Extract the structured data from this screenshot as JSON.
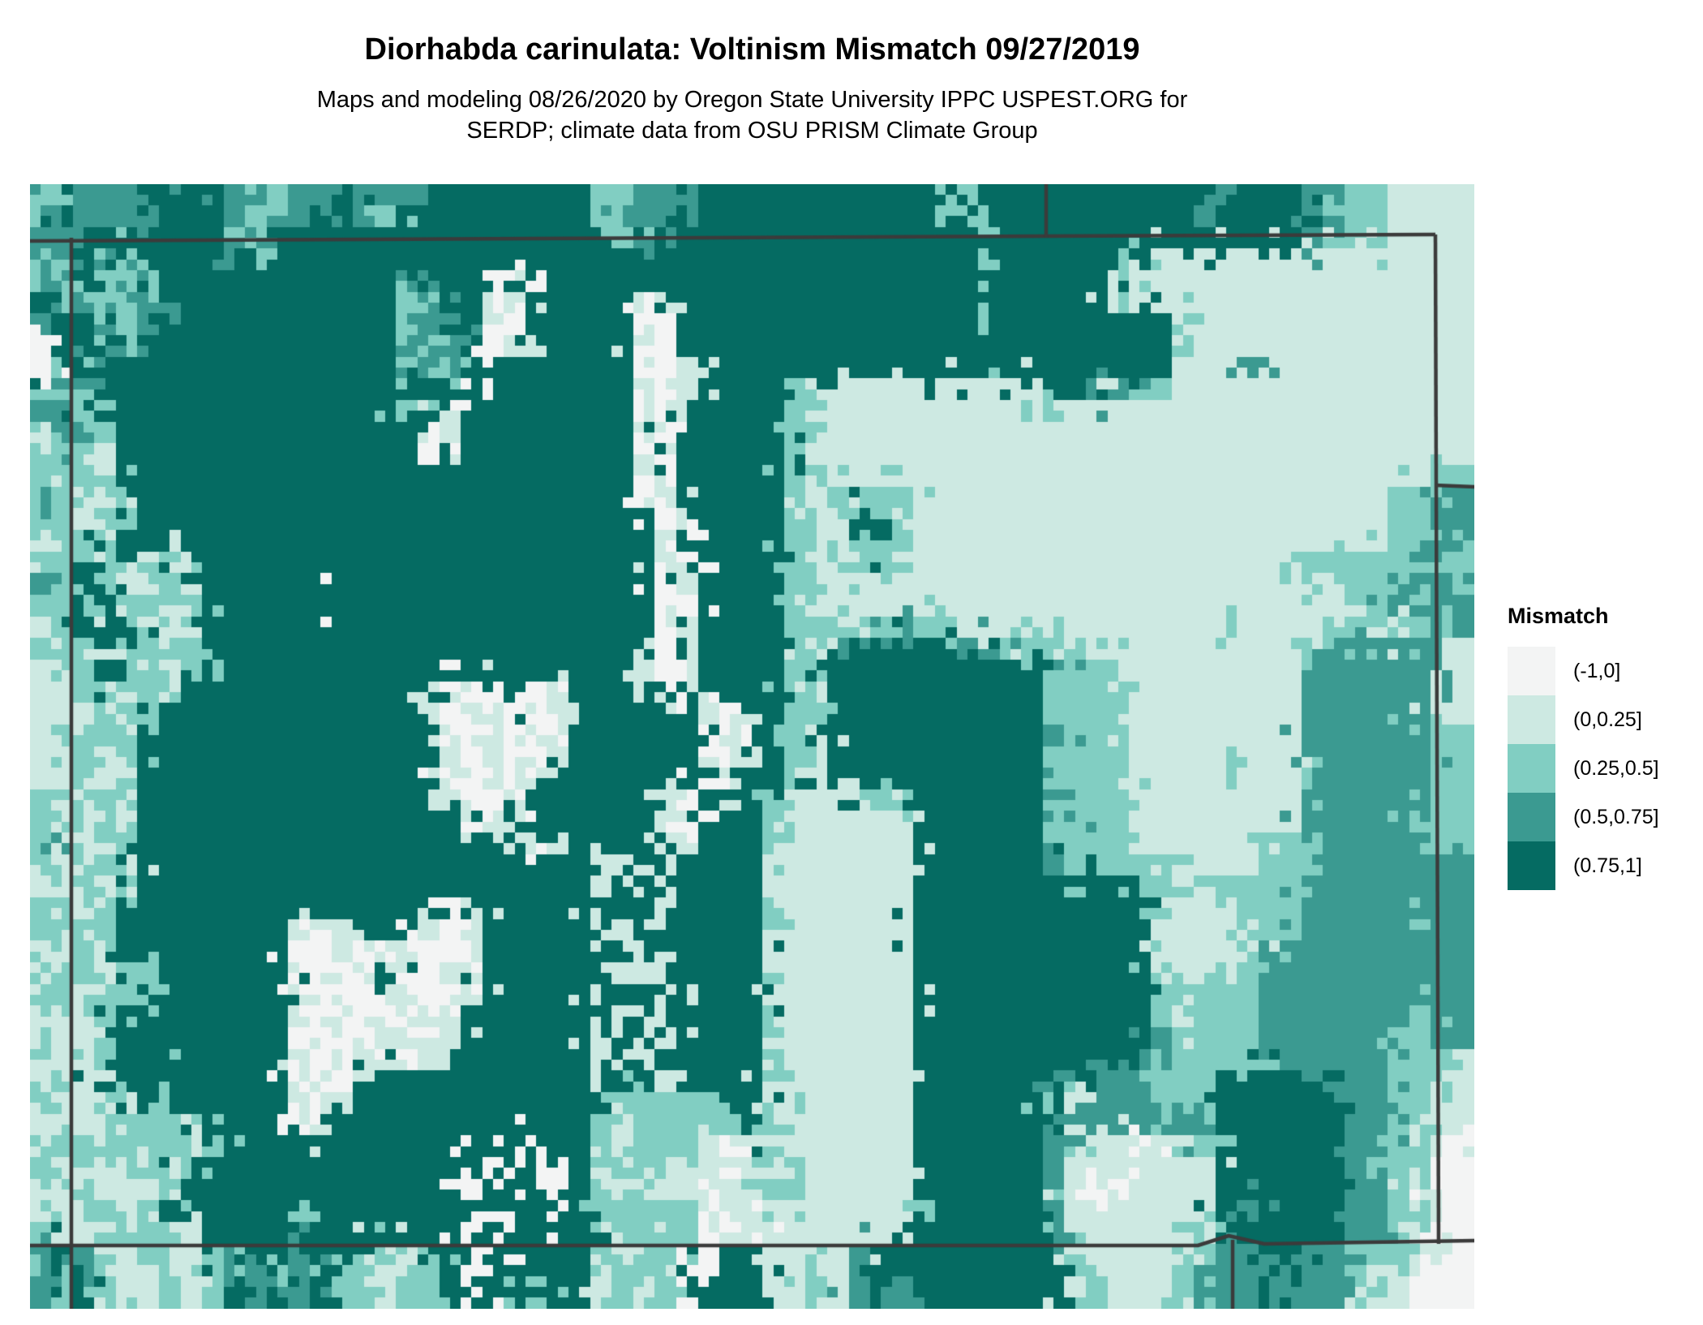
{
  "header": {
    "title": "Diorhabda carinulata: Voltinism Mismatch 09/27/2019",
    "subtitle_line1": "Maps and modeling 08/26/2020 by Oregon State University IPPC USPEST.ORG for",
    "subtitle_line2": "SERDP; climate data from OSU PRISM Climate Group"
  },
  "legend": {
    "title": "Mismatch",
    "items": [
      {
        "label": "(-1,0]",
        "class": "a",
        "color": "#f3f4f4"
      },
      {
        "label": "(0,0.25]",
        "class": "b",
        "color": "#cde9e2"
      },
      {
        "label": "(0.25,0.5]",
        "class": "c",
        "color": "#81cec2"
      },
      {
        "label": "(0.5,0.75]",
        "class": "d",
        "color": "#3b9a91"
      },
      {
        "label": "(0.75,1]",
        "class": "e",
        "color": "#056b62"
      }
    ]
  },
  "map": {
    "region": "Colorado and surrounding state borders",
    "palette": {
      "a": "#f3f4f4",
      "b": "#cde9e2",
      "c": "#81cec2",
      "d": "#3b9a91",
      "e": "#056b62"
    },
    "class_ranges": {
      "a": "(-1,0]",
      "b": "(0,0.25]",
      "c": "(0.25,0.5]",
      "d": "(0.5,0.75]",
      "e": "(0.75,1]"
    },
    "grid_cols": 67,
    "grid_rows": 52,
    "grid_rle_rows": [
      "1d1c4d3e2d1c2d1e3d8e2c3d11e2c3e8e1d3e2d2c4b",
      "1c1e3d1e3e1d1c2d2e1d1c1e8e1c1d2d1e11e1c1e3e7e1d4e1d1c2c4b",
      "2d1e2e1d3e1c1d15e2c1d2e13e1c2e10e2e1d1d2c2b2b",
      "1c1d1e1d1c4e1d1c2e8e2e3e9e9e1c1e4e2c2b9b2b2b",
      "1d1c1e1c1d1c2e5e4e1d1c2e2a5e1e6e12e3e1c2b12b2b",
      "1e1c1d2c1d2e9e1c1d2e1a1b5e1a1b5e7e2e3e3e3b12b2b",
      "1d2e1d1c1d2e9e1c2d1e1b1a5e2a5e9e1c2e6e1c3b8b2b",
      "1a1e1e1d1c3e9e1d1c1d1e1a1b5e1b1a5e9e3e6e1c3b8b2b",
      "1a1c6e9e1c1d1c3e5e2a1b4e9e1c2e6e2b3d7b2b",
      "1c1e1d5e9e3e1e1a1e5e1b1a1b4e2c10b2e2d2c10b2b2b",
      "2d1c5e9e1c1e1b1a2e4e1e1a1b5e1c1b10b1c2b13b4b",
      "1b1c1d1c4e9e1e1a1b1e2e5e1b1a5e2c10b16b4b",
      "1c1d1c1b4e9e1e1a2e7e1a1b5e1c1b10b16b4b",
      "2c1b1c4e9e4e7e1b1a5e2c4b6b16b2b2c",
      "1d1c1c1b1c3e9e4e7e1a1b5e1c1b4c6b16b2c2d",
      "1c1b1b1c1b3e9e4e7e1e1a1b4e1c1b1c1e2c6b16b2c2d",
      "1b1c1c1b4e9e4e7e1e1b1a4e2c1b1c1e1c6b12b4b2c2d",
      "2c3e1c1b1c9e4e7e1e1b1a4e1c1b4c6b12b2c2c1c1d2c",
      "1d1c1e1c1b1b1c1b9e4e7e1e1a1b4e2c10b8b4b1c1b2c2d1d1c",
      "2c1c1e1c1c1b1c5e1a3e4e7e1e1b1a4e1c1b10b8b4b2b2c1d1c2d",
      "1b1c3e1b1c1b9e4e7e1e1a1b4e2c2c2d2c2b2b8b1c3b1b1c2c1b1c2d",
      "2c1c1b1c3c9e4e7e1b1a1b4e1c1b2d4e2d2c2c6b4b1c1d2d2d1d1b",
      "2b1c2e1c1b1c9e4e7e1b1a1b4e2c10e1d3c4b4b4d2d2b",
      "2b1c1b1c2c1e9e1e1b2a1b1e1a1b1e2e1e1b1a4e1c1b10e4c4b4b4d2d2b",
      "2b1b1c1b1c2e9e1e1b1a1b2a1b1a1b2e3e1b1a1b1e2c10e4c8b4d1d1c2b",
      "2b3c3e9e2e1b2a1b1a1b3e3e1a1b1a1e1c1b10e1d3c8b4d2d2c",
      "2b1c1b1c3e9e2e1b1a1b2a1b3e3e1b1a1b1e2c10e4c4b1c3b4d2d2c",
      "2b1b1c1b3e9e1e1b2a1b1a1b1e3e3e1a1b1e1e1c1b10e4c4b4b1c3d2d2c",
      "1c1b3c3e9e2e1b2a1b2e3e1e1b1a3e1c2b2b2c6e1d3c4b4b4d2d2c",
      "2c1b1c1b3e9e2e1e1b1a1b2e3e1e1b1a3e1c6b6e1c1d2c4b4b4d1d1c2c",
      "1d1c2b1c3e9e4e1e1b1a1b3e1e2b3e1c6b6e4c2b4b2c4d2d2c",
      "1c1b1b1c1b3e9e4e4e1e1b1e1b2e3e1b6b6e1d3c2c4b2c1c3d2d2d",
      "2b1c1b1c3e9e4e5e1b1e1e1b1e3e1b6b6e4e2c4c2c4d2d2d",
      "2c1b1c4e9e1e1b1a1b5e1b1e1e1b1e3e1c6b6e5e1c3b1c2c4d2d2d",
      "1c1b2c4e4e1b1a1b2e1a1b1a1b5e1e2b2e3e1c6b6e5e4b1c2c4d1d1c2d",
      "2b1c1b4e4e2a1b1a1b1b2a1b5e1b1e1e1b1e3e1b6b6e5e5b1c1d4d2d2d",
      "1b1c1c1b2c6e1b2a1b1e2a1b1a5e1e1b1b2e3e1c6b6e5e1c2b2c2d4d2d2d",
      "2c1b3c6e1a1b1a1a1b1b2a1b5e1b1e1e1b1e3e1b6b6e5e5c2d4d2d2d",
      "3b1c2e6e1b1a1b2a1a1b1b1e5e1e1b1b2e3e1c6b6e5e1c1b3c2d4d1d1c2d",
      "1c2b3e6e2a1b1a1b1b1a1b1e5e1b1e1e1b1e3e1b6b6e5e1d4c2d4d2c2d",
      "3b1c2e6e1b2a1b1e1a1b2e5e1e1b1b2e3e1c6b6e5e5c2d4d2c1c1b",
      "1b1c1b3e1c5e1a1b1a1b1e4e5e1b1e1e1b1e3e1b6b6e1d1c3d3c2e2e2e2d2c2b",
      "1c2b1b1c1e6e1b1a1b2e4e5e1e1c3c1c2e1b1c5b6e1c1b3d3c2e4e2d2c2b",
      "3b1c1b1c1c1b4e1a1b3e4e5e1c1b3c1b1c1e1c6b6e5d3d6e2d2c2b",
      "1b1c1b3c1c1b1c3e5e3e1a1e1a2e1e1c1b3c1b1a1b1b6b6e1d1c2b1a2b1c6e2d2c1b1a",
      "1c1b1c1b1c1b1c5e5e3e1e1a1e1a1e1e1b1c1c1b1c1b1a1b1c6b6e1d7b6e1d1c2c2a",
      "2b1c3b1b1c4e5e3e1a1e1a1e1a1e1c1b1b1c1b1a2b1c1c5b6e1c1b2a4b6e2d1c1b2a",
      "1b1c1b1c1b1c6e1c4e3e1e1a2e1a1e2c1c1b1c1b1a1b1b6b1c5e1d7b1e1d4e2d2c1b1a",
      "1c2b3c1c1b4e5e3e1a1e1a2e1e1b1c3c1a1b1a1b6b6e1d1c5b1c1d5e2d1c1b2a",
      "1d1e1d2b1c2b1c1d1e1c1d2e1b1c1b1c2e1a2e2e1c1b2c1e1a1e1e1b3b1d5e3e1e4b2b1c1d2d1e2d2c1c1b1b1a",
      "1d1c1e1c2b1c1b1c1e1d1e1d1e1c1c1b2c1e1a2e1c2e1b1c1b1c1a2e1e1b1b1c1b1d1e1d3e3e1e1b1c2b1b1c2d1d1e3d1c1b1b1a2a",
      "1d1c1e1c2b1c1b1c1e1d1e1d1e1c1c1b2c1e1a2e1c2e1b1c1b1c1a2e1e1b1b1c1b1d1e1d3e3e1e1b1c2b1b1c2d1d1e3d1c1b1b1a2a",
      "1c1b1d1b1c1b1c2b1d1e1d2e1c1b2c1b2e1a2e2e1c1b1c1b1e1a1e1e1c2b1c1e1d4e1d2e1e2b2c1c3d2d1e2d2c1b1a2a"
    ],
    "border_color": "#3b3b3b",
    "border_lines": [
      [
        [
          0,
          70
        ],
        [
          1253,
          64
        ],
        [
          1733,
          62
        ]
      ],
      [
        [
          51,
          66
        ],
        [
          51,
          1386
        ]
      ],
      [
        [
          0,
          1308
        ],
        [
          1440,
          1308
        ],
        [
          1478,
          1296
        ],
        [
          1522,
          1306
        ],
        [
          1781,
          1302
        ]
      ],
      [
        [
          1733,
          62
        ],
        [
          1737,
          1306
        ]
      ],
      [
        [
          1253,
          0
        ],
        [
          1253,
          66
        ]
      ],
      [
        [
          1733,
          371
        ],
        [
          1781,
          373
        ]
      ],
      [
        [
          1483,
          1301
        ],
        [
          1483,
          1386
        ]
      ]
    ]
  }
}
